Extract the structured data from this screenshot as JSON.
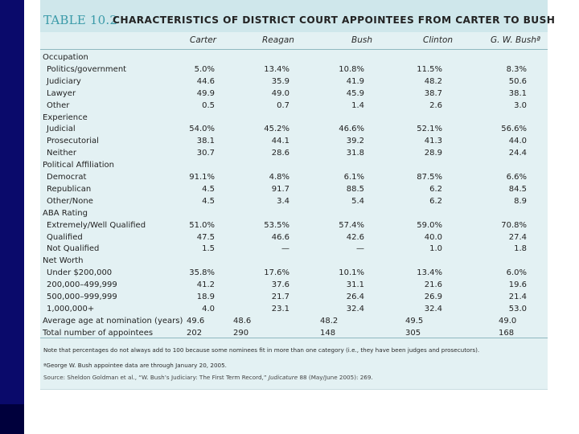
{
  "table": {
    "label": "TABLE 10.2",
    "title": "CHARACTERISTICS OF DISTRICT COURT APPOINTEES FROM CARTER TO BUSH",
    "columns": [
      "Carter",
      "Reagan",
      "Bush",
      "Clinton",
      "G. W. Bushª"
    ],
    "rows": [
      {
        "label": "Occupation",
        "section": true,
        "values": []
      },
      {
        "label": "Politics/government",
        "values": [
          "5.0%",
          "13.4%",
          "10.8%",
          "11.5%",
          "8.3%"
        ]
      },
      {
        "label": "Judiciary",
        "values": [
          "44.6",
          "35.9",
          "41.9",
          "48.2",
          "50.6"
        ]
      },
      {
        "label": "Lawyer",
        "values": [
          "49.9",
          "49.0",
          "45.9",
          "38.7",
          "38.1"
        ]
      },
      {
        "label": "Other",
        "values": [
          "0.5",
          "0.7",
          "1.4",
          "2.6",
          "3.0"
        ]
      },
      {
        "label": "Experience",
        "section": true,
        "values": []
      },
      {
        "label": "Judicial",
        "values": [
          "54.0%",
          "45.2%",
          "46.6%",
          "52.1%",
          "56.6%"
        ]
      },
      {
        "label": "Prosecutorial",
        "values": [
          "38.1",
          "44.1",
          "39.2",
          "41.3",
          "44.0"
        ]
      },
      {
        "label": "Neither",
        "values": [
          "30.7",
          "28.6",
          "31.8",
          "28.9",
          "24.4"
        ]
      },
      {
        "label": "Political Affiliation",
        "section": true,
        "values": []
      },
      {
        "label": "Democrat",
        "values": [
          "91.1%",
          "4.8%",
          "6.1%",
          "87.5%",
          "6.6%"
        ]
      },
      {
        "label": "Republican",
        "values": [
          "4.5",
          "91.7",
          "88.5",
          "6.2",
          "84.5"
        ]
      },
      {
        "label": "Other/None",
        "values": [
          "4.5",
          "3.4",
          "5.4",
          "6.2",
          "8.9"
        ]
      },
      {
        "label": "ABA Rating",
        "section": true,
        "values": []
      },
      {
        "label": "Extremely/Well Qualified",
        "values": [
          "51.0%",
          "53.5%",
          "57.4%",
          "59.0%",
          "70.8%"
        ]
      },
      {
        "label": "Qualified",
        "values": [
          "47.5",
          "46.6",
          "42.6",
          "40.0",
          "27.4"
        ]
      },
      {
        "label": "Not Qualified",
        "values": [
          "1.5",
          "—",
          "—",
          "1.0",
          "1.8"
        ]
      },
      {
        "label": "Net Worth",
        "section": true,
        "values": []
      },
      {
        "label": "Under $200,000",
        "values": [
          "35.8%",
          "17.6%",
          "10.1%",
          "13.4%",
          "6.0%"
        ]
      },
      {
        "label": "200,000–499,999",
        "values": [
          "41.2",
          "37.6",
          "31.1",
          "21.6",
          "19.6"
        ]
      },
      {
        "label": "500,000–999,999",
        "values": [
          "18.9",
          "21.7",
          "26.4",
          "26.9",
          "21.4"
        ]
      },
      {
        "label": "1,000,000+",
        "values": [
          "4.0",
          "23.1",
          "32.4",
          "32.4",
          "53.0"
        ]
      },
      {
        "label": "Average age at nomination (years)",
        "plain": true,
        "values": [
          "49.6",
          "48.6",
          "48.2",
          "49.5",
          "49.0"
        ]
      },
      {
        "label": "Total number of appointees",
        "plain": true,
        "values": [
          "202",
          "290",
          "148",
          "305",
          "168"
        ]
      }
    ],
    "notes": {
      "percentages": "Note that percentages do not always add to 100 because some nominees fit in more than one category (i.e., they have been judges and prosecutors).",
      "footnote": "ªGeorge W. Bush appointee data are through January 20, 2005.",
      "source_prefix": "Source: Sheldon Goldman et al., “W. Bush’s Judiciary: The First Term Record,” ",
      "source_journal": "Judicature",
      "source_suffix": " 88 (May/June 2005): 269."
    }
  },
  "colors": {
    "sidebar": "#0a0a6b",
    "table_background": "#e3f1f3",
    "title_band": "#cfe7eb",
    "label_accent": "#3a9aa8"
  }
}
